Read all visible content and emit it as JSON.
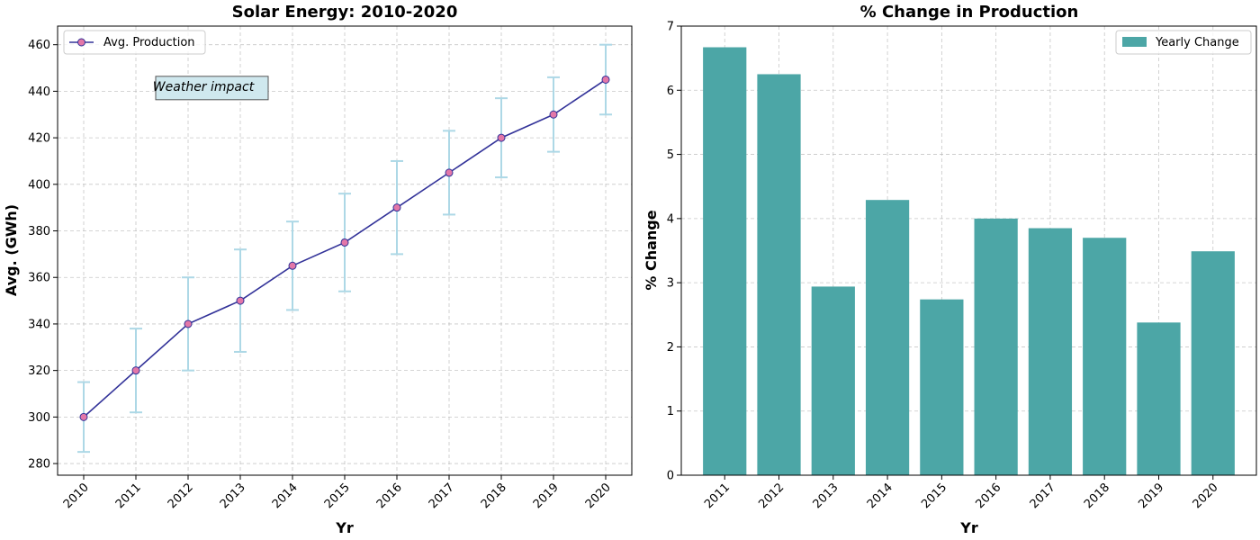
{
  "chart_data": [
    {
      "type": "line",
      "title": "Solar Energy: 2010-2020",
      "xlabel": "Yr",
      "ylabel": "Avg. (GWh)",
      "x": [
        2010,
        2011,
        2012,
        2013,
        2014,
        2015,
        2016,
        2017,
        2018,
        2019,
        2020
      ],
      "series": [
        {
          "name": "Avg. Production",
          "values": [
            300,
            320,
            340,
            350,
            365,
            375,
            390,
            405,
            420,
            430,
            445
          ],
          "error": [
            15,
            18,
            20,
            22,
            19,
            21,
            20,
            18,
            17,
            16,
            15
          ],
          "line_color": "#333399",
          "marker_color": "#e377a8",
          "error_color": "#add8e6"
        }
      ],
      "ylim": [
        275,
        468
      ],
      "yticks": [
        280,
        300,
        320,
        340,
        360,
        380,
        400,
        420,
        440,
        460
      ],
      "grid": true,
      "legend_position": "top-left",
      "annotation": {
        "text": "Weather impact",
        "x": 2011.5,
        "y": 441,
        "box_color": "#cfe8ee"
      }
    },
    {
      "type": "bar",
      "title": "% Change in Production",
      "xlabel": "Yr",
      "ylabel": "% Change",
      "categories": [
        "2011",
        "2012",
        "2013",
        "2014",
        "2015",
        "2016",
        "2017",
        "2018",
        "2019",
        "2020"
      ],
      "series": [
        {
          "name": "Yearly Change",
          "values": [
            6.67,
            6.25,
            2.94,
            4.29,
            2.74,
            4.0,
            3.85,
            3.7,
            2.38,
            3.49
          ],
          "color": "#4ca6a6"
        }
      ],
      "ylim": [
        0,
        7
      ],
      "yticks": [
        0,
        1,
        2,
        3,
        4,
        5,
        6,
        7
      ],
      "grid": true,
      "legend_position": "top-right"
    }
  ]
}
